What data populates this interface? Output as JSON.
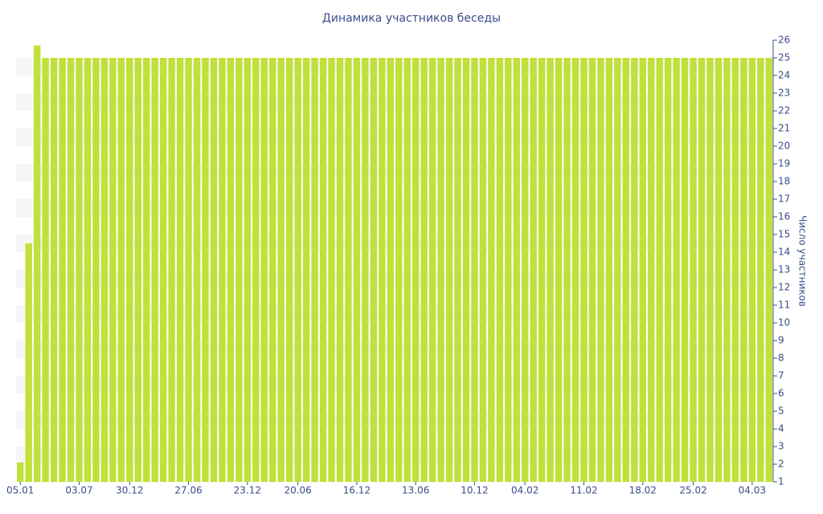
{
  "chart_data": {
    "type": "bar",
    "title": "Динамика участников беседы",
    "y_label": "Число участников",
    "categories": [
      "05.01",
      null,
      null,
      null,
      null,
      null,
      null,
      "03.07",
      null,
      null,
      null,
      null,
      null,
      "30.12",
      null,
      null,
      null,
      null,
      null,
      null,
      "27.06",
      null,
      null,
      null,
      null,
      null,
      null,
      "23.12",
      null,
      null,
      null,
      null,
      null,
      "20.06",
      null,
      null,
      null,
      null,
      null,
      null,
      "16.12",
      null,
      null,
      null,
      null,
      null,
      null,
      "13.06",
      null,
      null,
      null,
      null,
      null,
      null,
      "10.12",
      null,
      null,
      null,
      null,
      null,
      "04.02",
      null,
      null,
      null,
      null,
      null,
      null,
      "11.02",
      null,
      null,
      null,
      null,
      null,
      null,
      "18.02",
      null,
      null,
      null,
      null,
      null,
      "25.02",
      null,
      null,
      null,
      null,
      null,
      null,
      "04.03",
      null,
      null
    ],
    "values": [
      2.1,
      14.5,
      25.7,
      25,
      25,
      25,
      25,
      25,
      25,
      25,
      25,
      25,
      25,
      25,
      25,
      25,
      25,
      25,
      25,
      25,
      25,
      25,
      25,
      25,
      25,
      25,
      25,
      25,
      25,
      25,
      25,
      25,
      25,
      25,
      25,
      25,
      25,
      25,
      25,
      25,
      25,
      25,
      25,
      25,
      25,
      25,
      25,
      25,
      25,
      25,
      25,
      25,
      25,
      25,
      25,
      25,
      25,
      25,
      25,
      25,
      25,
      25,
      25,
      25,
      25,
      25,
      25,
      25,
      25,
      25,
      25,
      25,
      25,
      25,
      25,
      25,
      25,
      25,
      25,
      25,
      25,
      25,
      25,
      25,
      25,
      25,
      25,
      25,
      25,
      25
    ],
    "color": "#c1e03a",
    "ylim": [
      1,
      26
    ],
    "yticks": [
      1,
      2,
      3,
      4,
      5,
      6,
      7,
      8,
      9,
      10,
      11,
      12,
      13,
      14,
      15,
      16,
      17,
      18,
      19,
      20,
      21,
      22,
      23,
      24,
      25,
      26
    ],
    "y_axis_side": "right",
    "stripes": true
  }
}
